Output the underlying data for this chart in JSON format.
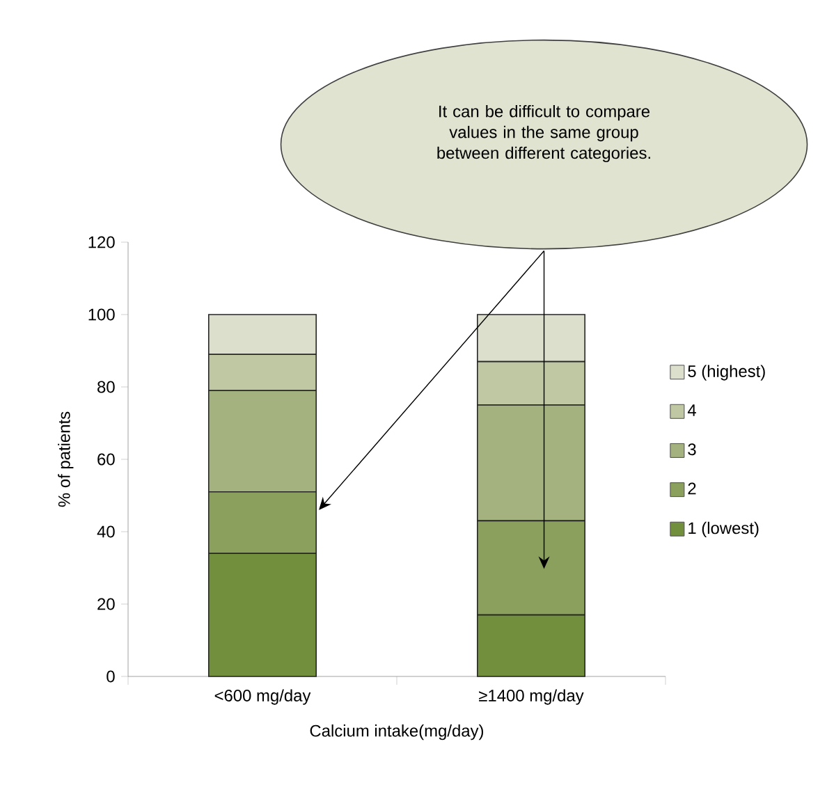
{
  "chart_data": {
    "type": "bar",
    "stacked": true,
    "xlabel": "Calcium intake(mg/day)",
    "ylabel": "% of patients",
    "categories": [
      "<600 mg/day",
      "≥1400 mg/day"
    ],
    "series": [
      {
        "name": "1 (lowest)",
        "color": "#728f3e",
        "values": [
          34,
          17
        ]
      },
      {
        "name": "2",
        "color": "#8aa05c",
        "values": [
          17,
          26
        ]
      },
      {
        "name": "3",
        "color": "#a3b27e",
        "values": [
          28,
          32
        ]
      },
      {
        "name": "4",
        "color": "#bfc7a3",
        "values": [
          10,
          12
        ]
      },
      {
        "name": "5 (highest)",
        "color": "#dcdfcc",
        "values": [
          11,
          13
        ]
      }
    ],
    "ylim": [
      0,
      120
    ],
    "yticks": [
      0,
      20,
      40,
      60,
      80,
      100,
      120
    ],
    "grid": false,
    "legend": "right",
    "annotations": [
      "It can be difficult to compare values in the same group between different categories."
    ]
  }
}
